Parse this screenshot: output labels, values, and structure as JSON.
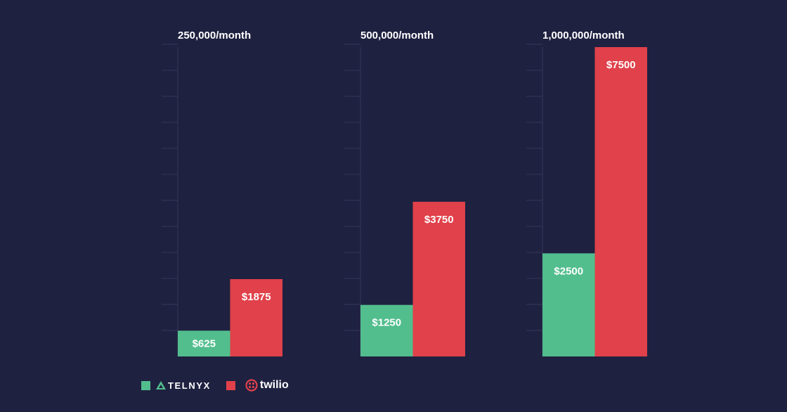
{
  "chart_data": {
    "type": "bar",
    "categories": [
      "250,000/month",
      "500,000/month",
      "1,000,000/month"
    ],
    "series": [
      {
        "name": "TELNYX",
        "values": [
          625,
          1250,
          2500
        ],
        "labels": [
          "$625",
          "$1250",
          "$2500"
        ]
      },
      {
        "name": "twilio",
        "values": [
          1875,
          3750,
          7500
        ],
        "labels": [
          "$1875",
          "$3750",
          "$7500"
        ]
      }
    ],
    "ylim": [
      0,
      7500
    ],
    "grid": true,
    "legend": "bottom-left"
  },
  "colors": {
    "background": "#1f2140",
    "telnyx": "#52be8d",
    "twilio": "#e0414a",
    "grid": "#34375a"
  },
  "legend": {
    "telnyx_label": "TELNYX",
    "twilio_label": "twilio"
  }
}
